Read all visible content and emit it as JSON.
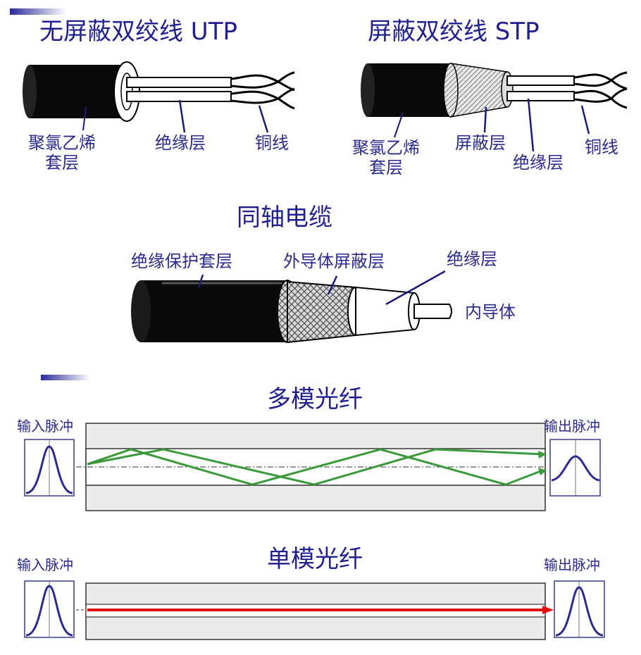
{
  "utp": {
    "title": "无屏蔽双绞线 UTP",
    "jacket_line1": "聚氯乙烯",
    "jacket_line2": "套层",
    "insulation": "绝缘层",
    "copper": "铜线"
  },
  "stp": {
    "title": "屏蔽双绞线 STP",
    "jacket_line1": "聚氯乙烯",
    "jacket_line2": "套层",
    "shield": "屏蔽层",
    "insulation": "绝缘层",
    "copper": "铜线"
  },
  "coax": {
    "title": "同轴电缆",
    "outer_jacket": "绝缘保护套层",
    "outer_conductor": "外导体屏蔽层",
    "insulation": "绝缘层",
    "inner_conductor": "内导体"
  },
  "multimode": {
    "title": "多模光纤",
    "input_label": "输入脉冲",
    "output_label": "输出脉冲"
  },
  "singlemode": {
    "title": "单模光纤",
    "input_label": "输入脉冲",
    "output_label": "输出脉冲"
  },
  "colors": {
    "label_text": "#2a2a90",
    "ray_multimode": "#3a9a3a",
    "ray_singlemode": "#e01010",
    "pulse_curve": "#2a2a90"
  }
}
